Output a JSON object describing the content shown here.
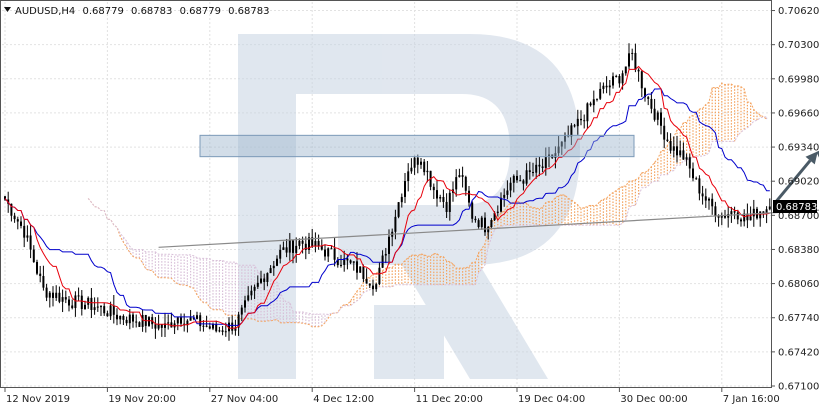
{
  "header": {
    "symbol": "AUDUSD,H4",
    "open": "0.68779",
    "high": "0.68783",
    "low": "0.68779",
    "close": "0.68783"
  },
  "colors": {
    "background": "#ffffff",
    "grid": "#e2e2e2",
    "candle": "#000000",
    "tenkan": "#e8000b",
    "kijun": "#0000cc",
    "cloud_bull": "#f4a460",
    "cloud_bear": "#d8bfd8",
    "resistance_zone": "#9cb4cc",
    "trendline": "#8a8a8a",
    "forecast_arrow": "#4a5a66",
    "price_tag": "#000000"
  },
  "chart_data": {
    "type": "candlestick",
    "symbol": "AUDUSD",
    "timeframe": "H4",
    "last_price": "0.68783",
    "ylim": [
      0.671,
      0.707
    ],
    "y_ticks": [
      "0.70620",
      "0.70300",
      "0.69980",
      "0.69660",
      "0.69340",
      "0.69020",
      "0.68700",
      "0.68380",
      "0.68060",
      "0.67740",
      "0.67420",
      "0.67100"
    ],
    "x_ticks": [
      "12 Nov 2019",
      "19 Nov 20:00",
      "27 Nov 04:00",
      "4 Dec 12:00",
      "11 Dec 20:00",
      "19 Dec 04:00",
      "30 Dec 00:00",
      "7 Jan 16:00"
    ],
    "x_tick_bars": [
      0,
      32,
      64,
      96,
      128,
      160,
      192,
      224
    ],
    "bar_count": 240,
    "anchors": [
      [
        0,
        0.6885
      ],
      [
        6,
        0.6855
      ],
      [
        12,
        0.68
      ],
      [
        20,
        0.679
      ],
      [
        28,
        0.6785
      ],
      [
        36,
        0.6775
      ],
      [
        44,
        0.677
      ],
      [
        50,
        0.6765
      ],
      [
        54,
        0.6775
      ],
      [
        60,
        0.677
      ],
      [
        66,
        0.6762
      ],
      [
        72,
        0.6768
      ],
      [
        80,
        0.681
      ],
      [
        86,
        0.6835
      ],
      [
        92,
        0.6845
      ],
      [
        98,
        0.684
      ],
      [
        104,
        0.683
      ],
      [
        110,
        0.682
      ],
      [
        116,
        0.6805
      ],
      [
        120,
        0.685
      ],
      [
        126,
        0.6915
      ],
      [
        130,
        0.6925
      ],
      [
        134,
        0.6895
      ],
      [
        138,
        0.688
      ],
      [
        142,
        0.691
      ],
      [
        146,
        0.687
      ],
      [
        150,
        0.686
      ],
      [
        154,
        0.688
      ],
      [
        158,
        0.69
      ],
      [
        162,
        0.6905
      ],
      [
        168,
        0.6915
      ],
      [
        174,
        0.6935
      ],
      [
        180,
        0.696
      ],
      [
        186,
        0.6985
      ],
      [
        192,
        0.7
      ],
      [
        196,
        0.702
      ],
      [
        200,
        0.6985
      ],
      [
        204,
        0.696
      ],
      [
        208,
        0.6935
      ],
      [
        212,
        0.6925
      ],
      [
        216,
        0.69
      ],
      [
        220,
        0.688
      ],
      [
        224,
        0.687
      ],
      [
        228,
        0.6875
      ],
      [
        232,
        0.6866
      ],
      [
        236,
        0.6875
      ],
      [
        239,
        0.68783
      ]
    ],
    "ichimoku": {
      "tenkan_period": 9,
      "kijun_period": 26,
      "senkou_b_period": 52,
      "displacement": 26
    },
    "annotations": {
      "resistance_zone": {
        "low": 0.6925,
        "high": 0.6945,
        "from_bar": 128,
        "to_bar": 270
      },
      "support_trendline": {
        "from": [
          48,
          0.684
        ],
        "to": [
          285,
          0.688
        ]
      },
      "forecast_path": [
        [
          241,
          0.6883
        ],
        [
          254,
          0.693
        ],
        [
          282,
          0.6745
        ]
      ]
    }
  }
}
